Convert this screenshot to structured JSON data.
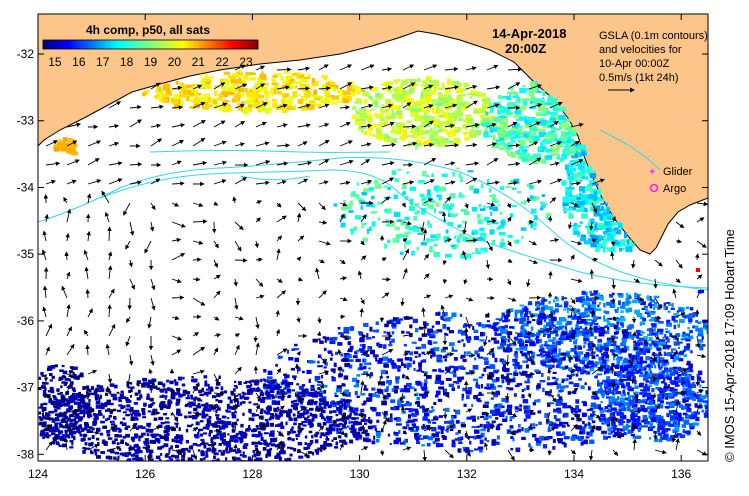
{
  "map": {
    "title_date": "14-Apr-2018",
    "title_time": "20:00Z",
    "colorbar": {
      "label": "4h comp, p50, all sats",
      "ticks": [
        "15",
        "16",
        "17",
        "18",
        "19",
        "20",
        "21",
        "22",
        "23"
      ],
      "min": 14.5,
      "max": 23.5
    },
    "gsla_note": [
      "GSLA (0.1m contours)",
      "and velocities for",
      "10-Apr 00:00Z",
      "0.5m/s (1kt 24h)"
    ],
    "legend": {
      "glider": "Glider",
      "argo": "Argo"
    },
    "x_ticks": [
      "124",
      "126",
      "128",
      "130",
      "132",
      "134",
      "136"
    ],
    "y_ticks": [
      "-32",
      "-33",
      "-34",
      "-35",
      "-36",
      "-37",
      "-38"
    ],
    "x_range": [
      124,
      136.5
    ],
    "y_range": [
      -38.1,
      -31.4
    ],
    "credit_copyright": "©",
    "credit": "IMOS 15-Apr-2018 17:09 Hobart Time",
    "colors": {
      "land": "#fcc68a",
      "contour": "#33d6f2",
      "glider": "#ff33ff",
      "argo": "#ee22ee"
    }
  }
}
